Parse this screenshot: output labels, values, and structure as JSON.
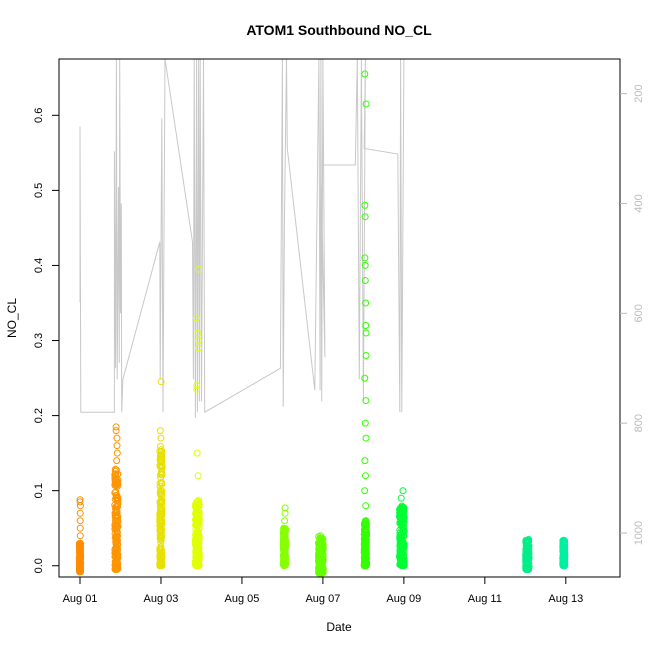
{
  "chart_data": {
    "type": "scatter",
    "title": "ATOM1 Southbound NO_CL",
    "xlabel": "Date",
    "ylabel": "NO_CL",
    "x_ticks": [
      "Aug 01",
      "Aug 03",
      "Aug 05",
      "Aug 07",
      "Aug 09",
      "Aug 11",
      "Aug 13"
    ],
    "x_range": [
      0.0,
      12.82
    ],
    "y_ticks": [
      "0.0",
      "0.1",
      "0.2",
      "0.3",
      "0.4",
      "0.5",
      "0.6"
    ],
    "y_range": [
      -0.015,
      0.675
    ],
    "right_axis": {
      "ticks": [
        "200",
        "400",
        "600",
        "800",
        "1000"
      ],
      "range": [
        1080,
        137
      ],
      "color": "#bbbbbb"
    },
    "scatter_clusters": [
      {
        "x": 0.0,
        "spread": 0.03,
        "ymin": -0.008,
        "ymax": 0.03,
        "outliers": [
          0.04,
          0.05,
          0.06,
          0.07,
          0.08,
          0.085,
          0.088
        ],
        "color": "#ff8c00"
      },
      {
        "x": 0.9,
        "spread": 0.08,
        "ymin": -0.005,
        "ymax": 0.13,
        "outliers": [
          0.14,
          0.15,
          0.16,
          0.17,
          0.18,
          0.185
        ],
        "color": "#ff9500"
      },
      {
        "x": 2.0,
        "spread": 0.06,
        "ymin": 0.0,
        "ymax": 0.16,
        "outliers": [
          0.17,
          0.18,
          0.245
        ],
        "color": "#e8e000"
      },
      {
        "x": 2.9,
        "spread": 0.1,
        "ymin": 0.0,
        "ymax": 0.09,
        "outliers": [
          0.12,
          0.15,
          0.235,
          0.24,
          0.29,
          0.3,
          0.31,
          0.33,
          0.395
        ],
        "color": "#e0ff00"
      },
      {
        "x": 5.05,
        "spread": 0.06,
        "ymin": 0.0,
        "ymax": 0.05,
        "outliers": [
          0.06,
          0.07,
          0.077
        ],
        "color": "#88ff00"
      },
      {
        "x": 5.95,
        "spread": 0.12,
        "ymin": -0.01,
        "ymax": 0.04,
        "outliers": [],
        "color": "#66ff00"
      },
      {
        "x": 7.05,
        "spread": 0.06,
        "ymin": 0.0,
        "ymax": 0.06,
        "outliers": [
          0.08,
          0.1,
          0.12,
          0.14,
          0.17,
          0.19,
          0.22,
          0.25,
          0.28,
          0.31,
          0.32,
          0.35,
          0.38,
          0.4,
          0.41,
          0.465,
          0.48,
          0.615,
          0.655
        ],
        "color": "#33ff00"
      },
      {
        "x": 7.95,
        "spread": 0.12,
        "ymin": 0.0,
        "ymax": 0.08,
        "outliers": [
          0.09,
          0.1
        ],
        "color": "#00ff33"
      },
      {
        "x": 11.05,
        "spread": 0.08,
        "ymin": -0.005,
        "ymax": 0.035,
        "outliers": [],
        "color": "#00ee88"
      },
      {
        "x": 11.95,
        "spread": 0.05,
        "ymin": 0.0,
        "ymax": 0.035,
        "outliers": [],
        "color": "#00f0a0"
      }
    ],
    "secondary_line": {
      "color": "#c8c8c8",
      "points": [
        [
          0.0,
          580
        ],
        [
          0.0,
          260
        ],
        [
          0.02,
          780
        ],
        [
          0.85,
          780
        ],
        [
          0.85,
          305
        ],
        [
          0.88,
          700
        ],
        [
          0.9,
          137
        ],
        [
          0.92,
          720
        ],
        [
          0.95,
          370
        ],
        [
          0.97,
          690
        ],
        [
          0.98,
          137
        ],
        [
          1.0,
          600
        ],
        [
          1.02,
          400
        ],
        [
          1.03,
          780
        ],
        [
          1.06,
          720
        ],
        [
          1.97,
          470
        ],
        [
          1.98,
          720
        ],
        [
          2.02,
          245
        ],
        [
          2.05,
          780
        ],
        [
          2.1,
          137
        ],
        [
          2.78,
          470
        ],
        [
          2.8,
          720
        ],
        [
          2.82,
          137
        ],
        [
          2.85,
          790
        ],
        [
          2.88,
          137
        ],
        [
          2.9,
          780
        ],
        [
          2.93,
          137
        ],
        [
          2.95,
          760
        ],
        [
          2.97,
          137
        ],
        [
          3.0,
          760
        ],
        [
          3.05,
          137
        ],
        [
          3.08,
          780
        ],
        [
          4.95,
          700
        ],
        [
          5.0,
          137
        ],
        [
          5.02,
          770
        ],
        [
          5.05,
          440
        ],
        [
          5.1,
          137
        ],
        [
          5.12,
          300
        ],
        [
          5.8,
          740
        ],
        [
          5.9,
          137
        ],
        [
          5.93,
          740
        ],
        [
          5.95,
          137
        ],
        [
          5.97,
          760
        ],
        [
          6.0,
          137
        ],
        [
          6.05,
          680
        ],
        [
          5.95,
          330
        ],
        [
          6.8,
          330
        ],
        [
          6.85,
          137
        ],
        [
          6.9,
          720
        ],
        [
          6.95,
          137
        ],
        [
          7.0,
          760
        ],
        [
          7.05,
          137
        ],
        [
          7.02,
          300
        ],
        [
          7.85,
          310
        ],
        [
          7.9,
          780
        ],
        [
          7.92,
          137
        ],
        [
          7.95,
          780
        ],
        [
          8.0,
          137
        ]
      ]
    }
  }
}
